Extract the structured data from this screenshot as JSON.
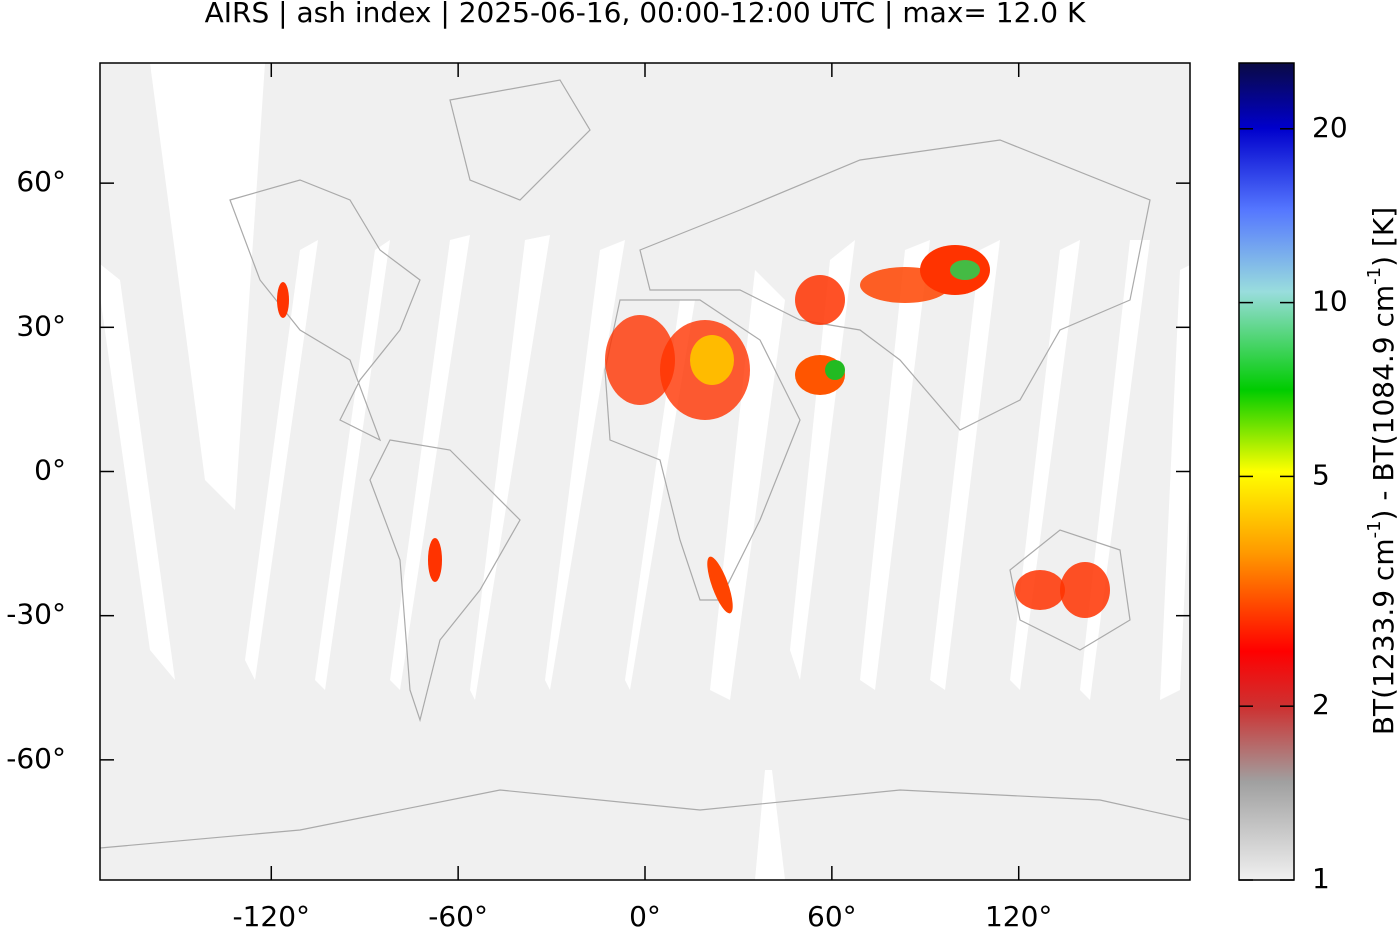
{
  "chart_data": {
    "type": "map",
    "title": "AIRS | ash index | 2025-06-16, 00:00-12:00 UTC | max= 12.0 K",
    "xlim": [
      -175,
      175
    ],
    "ylim": [
      -85,
      85
    ],
    "xticks": [
      {
        "value": -120,
        "label": "-120°"
      },
      {
        "value": -60,
        "label": "-60°"
      },
      {
        "value": 0,
        "label": "0°"
      },
      {
        "value": 60,
        "label": "60°"
      },
      {
        "value": 120,
        "label": "120°"
      }
    ],
    "yticks": [
      {
        "value": 60,
        "label": "60°"
      },
      {
        "value": 30,
        "label": "30°"
      },
      {
        "value": 0,
        "label": "0°"
      },
      {
        "value": -30,
        "label": "-30°"
      },
      {
        "value": -60,
        "label": "-60°"
      }
    ],
    "colorbar": {
      "log_scale": true,
      "lim": [
        1,
        26
      ],
      "ticks": [
        1,
        2,
        5,
        10,
        20
      ],
      "label": [
        {
          "text": "BT(1233.9 cm"
        },
        {
          "sup": "-1"
        },
        {
          "text": ") - BT(1084.9 cm"
        },
        {
          "sup": "-1"
        },
        {
          "text": ") [K]"
        }
      ]
    }
  }
}
